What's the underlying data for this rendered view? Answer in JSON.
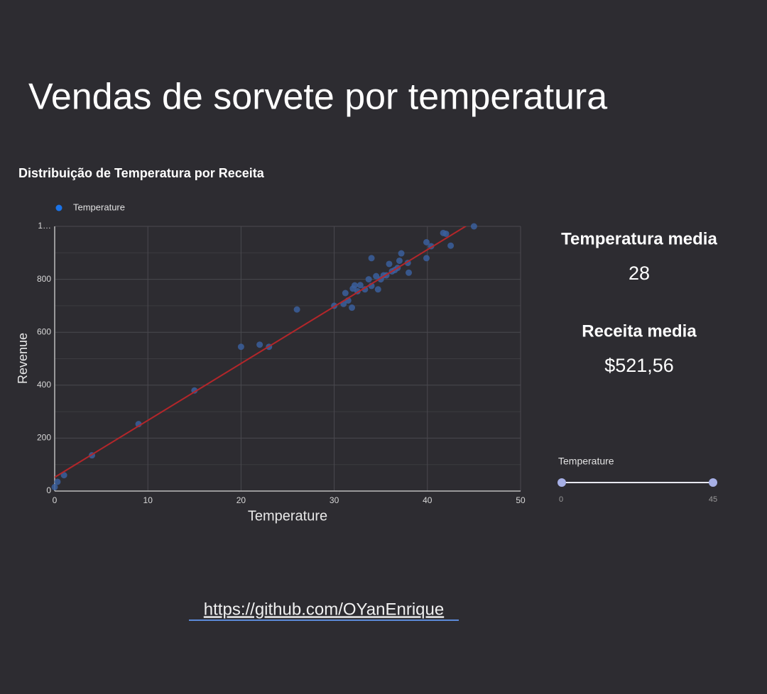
{
  "title": "Vendas de sorvete por temperatura",
  "chart_data": {
    "type": "scatter",
    "title": "Distribuição de Temperatura por Receita",
    "x_label": "Temperature",
    "y_label": "Revenue",
    "x": [
      0,
      0.3,
      1,
      4,
      9,
      15,
      20,
      22,
      23,
      26,
      30,
      31,
      31.2,
      31.5,
      31.9,
      32,
      32.2,
      32.5,
      32.8,
      33.3,
      33.7,
      34,
      34,
      34.5,
      34.7,
      35,
      35.3,
      35.6,
      35.9,
      36.2,
      36.5,
      36.8,
      37,
      37.2,
      37.9,
      38,
      39.9,
      39.9,
      40.4,
      41.7,
      42,
      42.5,
      45
    ],
    "series": [
      {
        "name": "Temperature",
        "color": "#3b5f9c",
        "legend_color": "#1a73e8",
        "values": [
          15,
          35,
          60,
          135,
          253,
          380,
          545,
          553,
          545,
          686,
          700,
          707,
          748,
          720,
          693,
          765,
          777,
          755,
          778,
          762,
          800,
          880,
          775,
          812,
          762,
          800,
          815,
          815,
          858,
          830,
          835,
          843,
          870,
          898,
          862,
          825,
          940,
          880,
          925,
          975,
          972,
          927,
          1000
        ]
      }
    ],
    "trendline": {
      "intercept": 52,
      "slope": 21.5,
      "color": "#b3262a"
    },
    "xlim": [
      0,
      50
    ],
    "xticks": [
      0,
      10,
      20,
      30,
      40,
      50
    ],
    "ylim": [
      0,
      1000
    ],
    "yticks": [
      0,
      200,
      400,
      600,
      800,
      {
        "value": 1000,
        "label": "1…"
      }
    ],
    "grid": true
  },
  "scorecards": [
    {
      "label": "Temperatura media",
      "value": 28
    },
    {
      "label": "Receita media",
      "value": 521.56,
      "value_label": "$521,56"
    }
  ],
  "slider": {
    "label": "Temperature",
    "min": 0,
    "max": 45
  },
  "link": "https://github.com/OYanEnrique"
}
